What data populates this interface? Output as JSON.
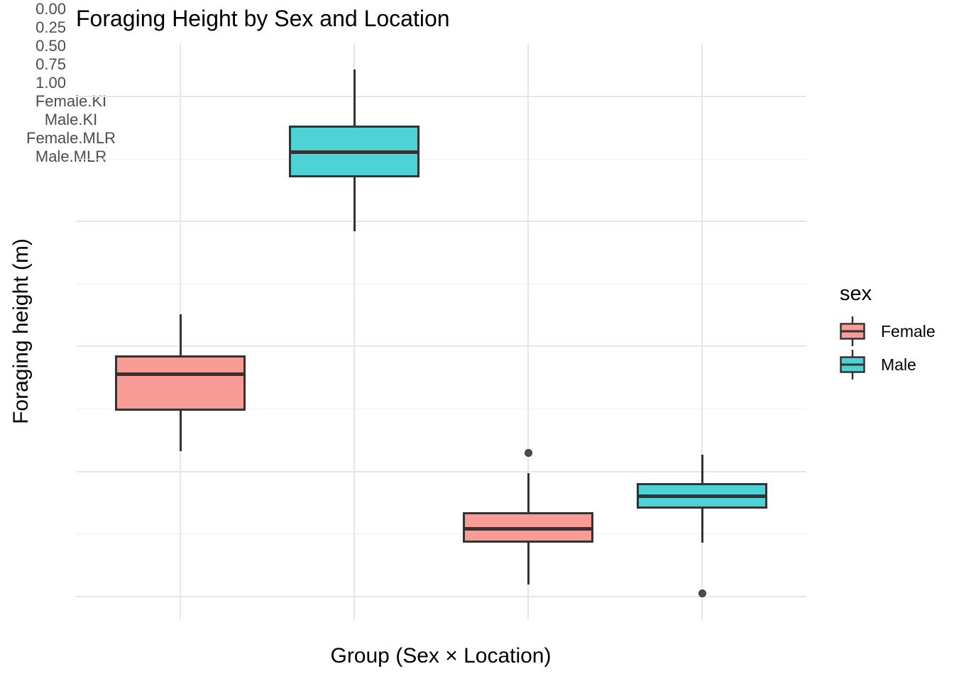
{
  "chart_data": {
    "type": "boxplot",
    "title": "Foraging Height by Sex and Location",
    "xlabel": "Group (Sex × Location)",
    "ylabel": "Foraging height (m)",
    "categories": [
      "Female.KI",
      "Male.KI",
      "Female.MLR",
      "Male.MLR"
    ],
    "y_ticks": [
      0,
      0.25,
      0.5,
      0.75,
      1.0
    ],
    "y_tick_labels": [
      "0.00",
      "0.25",
      "0.50",
      "0.75",
      "1.00"
    ],
    "y_minor_ticks": [
      0.125,
      0.375,
      0.625,
      0.875
    ],
    "ylim": [
      -0.046,
      1.107
    ],
    "grid": "major+minor horizontal, major vertical at categories",
    "legend": {
      "title": "sex",
      "position": "right",
      "entries": [
        {
          "label": "Female",
          "color": "#FA9C96"
        },
        {
          "label": "Male",
          "color": "#4DD2D5"
        }
      ]
    },
    "series": [
      {
        "category": "Female.KI",
        "group": "Female",
        "whisker_low": 0.29,
        "q1": 0.372,
        "median": 0.445,
        "q3": 0.482,
        "whisker_high": 0.565,
        "outliers": []
      },
      {
        "category": "Male.KI",
        "group": "Male",
        "whisker_low": 0.73,
        "q1": 0.838,
        "median": 0.889,
        "q3": 0.942,
        "whisker_high": 1.054,
        "outliers": []
      },
      {
        "category": "Female.MLR",
        "group": "Female",
        "whisker_low": 0.023,
        "q1": 0.108,
        "median": 0.135,
        "q3": 0.168,
        "whisker_high": 0.246,
        "outliers": [
          0.287
        ]
      },
      {
        "category": "Male.MLR",
        "group": "Male",
        "whisker_low": 0.107,
        "q1": 0.176,
        "median": 0.2,
        "q3": 0.227,
        "whisker_high": 0.284,
        "outliers": [
          0.006
        ]
      }
    ],
    "style": {
      "female_fill": "#FA9C96",
      "male_fill": "#4DD2D5",
      "box_border": "#333333",
      "median_color": "#333333",
      "outlier_color": "#4d4d4d",
      "grid_major": "#e6e6e6",
      "grid_minor": "#f0f0f0",
      "axis_text": "#4d4d4d",
      "background": "#ffffff"
    }
  }
}
